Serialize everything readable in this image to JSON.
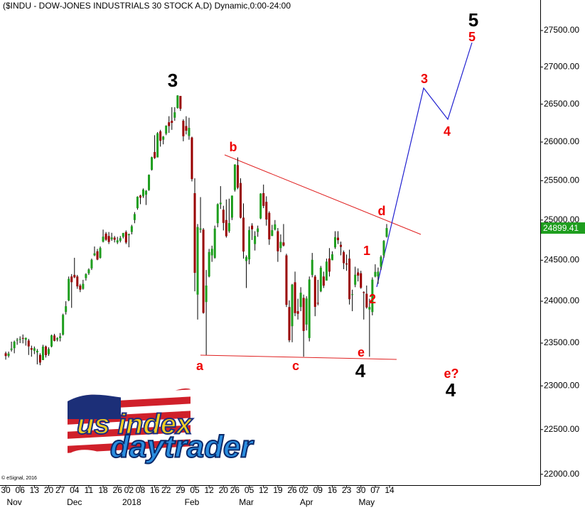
{
  "chart_data": {
    "type": "candlestick",
    "title": "($INDU - DOW-JONES INDUSTRIALS 30 STOCK A,D) Dynamic,0:00-24:00",
    "copyright": "© eSignal, 2016",
    "log_y": true,
    "up_color": "#1e9e1e",
    "down_color": "#990000",
    "wick_color": "#000000",
    "ylim": [
      21880,
      27925
    ],
    "yticks": [
      {
        "value": 22000,
        "label": "22000.00"
      },
      {
        "value": 22500,
        "label": "22500.00"
      },
      {
        "value": 23000,
        "label": "23000.00"
      },
      {
        "value": 23500,
        "label": "23500.00"
      },
      {
        "value": 24000,
        "label": "24000.00"
      },
      {
        "value": 24500,
        "label": "24500.00"
      },
      {
        "value": 25000,
        "label": "25000.00"
      },
      {
        "value": 25500,
        "label": "25500.00"
      },
      {
        "value": 26000,
        "label": "26000.00"
      },
      {
        "value": 26500,
        "label": "26500.00"
      },
      {
        "value": 27000,
        "label": "27000.00"
      },
      {
        "value": 27500,
        "label": "27500.00"
      }
    ],
    "xlim": [
      -2,
      186.6
    ],
    "xticks": [
      {
        "value": 0,
        "label": "30"
      },
      {
        "value": 5,
        "label": "06"
      },
      {
        "value": 10,
        "label": "13"
      },
      {
        "value": 15,
        "label": "20"
      },
      {
        "value": 19,
        "label": "27"
      },
      {
        "value": 24,
        "label": "04"
      },
      {
        "value": 29,
        "label": "11"
      },
      {
        "value": 34,
        "label": "18"
      },
      {
        "value": 39,
        "label": "26"
      },
      {
        "value": 43,
        "label": "02"
      },
      {
        "value": 47,
        "label": "08"
      },
      {
        "value": 52,
        "label": "16"
      },
      {
        "value": 56,
        "label": "22"
      },
      {
        "value": 61,
        "label": "29"
      },
      {
        "value": 66,
        "label": "05"
      },
      {
        "value": 71,
        "label": "12"
      },
      {
        "value": 76,
        "label": "20"
      },
      {
        "value": 80,
        "label": "26"
      },
      {
        "value": 85,
        "label": "05"
      },
      {
        "value": 90,
        "label": "12"
      },
      {
        "value": 95,
        "label": "19"
      },
      {
        "value": 100,
        "label": "26"
      },
      {
        "value": 104,
        "label": "02"
      },
      {
        "value": 109,
        "label": "09"
      },
      {
        "value": 114,
        "label": "16"
      },
      {
        "value": 119,
        "label": "23"
      },
      {
        "value": 124,
        "label": "30"
      },
      {
        "value": 129,
        "label": "07"
      },
      {
        "value": 134,
        "label": "14"
      }
    ],
    "month_labels": [
      {
        "value": 3,
        "label": "Nov"
      },
      {
        "value": 24,
        "label": "Dec"
      },
      {
        "value": 44,
        "label": "2018"
      },
      {
        "value": 65,
        "label": "Feb"
      },
      {
        "value": 84,
        "label": "Mar"
      },
      {
        "value": 105,
        "label": "Apr"
      },
      {
        "value": 126,
        "label": "May"
      }
    ],
    "open": [
      23380,
      23350,
      23420,
      23440,
      23530,
      23545,
      23560,
      23540,
      23530,
      23440,
      23410,
      23390,
      23360,
      23300,
      23460,
      23370,
      23460,
      23590,
      23540,
      23560,
      23600,
      23870,
      24010,
      24300,
      24320,
      24300,
      24190,
      24150,
      24280,
      24340,
      24400,
      24560,
      24610,
      24530,
      24730,
      24830,
      24800,
      24760,
      24780,
      24720,
      24740,
      24790,
      24850,
      24810,
      24850,
      25000,
      25150,
      25310,
      25300,
      25320,
      25380,
      25640,
      25870,
      25800,
      26140,
      26030,
      26110,
      26260,
      26280,
      26320,
      26450,
      26610,
      26280,
      26210,
      26080,
      26060,
      25340,
      24080,
      24880,
      24880,
      23990,
      24300,
      24560,
      24530,
      24960,
      25200,
      25130,
      25000,
      24860,
      25030,
      25380,
      25700,
      25470,
      25030,
      24490,
      24510,
      24930,
      24700,
      24850,
      25020,
      25340,
      25230,
      25090,
      24800,
      24880,
      24860,
      24650,
      24720,
      24560,
      23930,
      23700,
      24230,
      23880,
      23930,
      24040,
      23720,
      23560,
      24320,
      24300,
      23980,
      24120,
      24300,
      24250,
      24520,
      24500,
      24660,
      24780,
      24690,
      24600,
      24460,
      24520,
      24080,
      24200,
      24350,
      24340,
      24110,
      24090,
      23900,
      23870,
      24300,
      24300,
      24420,
      24560,
      24790
    ],
    "high": [
      23400,
      23400,
      23517,
      23530,
      23560,
      23580,
      23602,
      23565,
      23550,
      23470,
      23460,
      23430,
      23380,
      23480,
      23470,
      23450,
      23600,
      23610,
      23570,
      23620,
      23850,
      24000,
      24300,
      24330,
      24530,
      24320,
      24210,
      24260,
      24340,
      24400,
      24520,
      24670,
      24640,
      24670,
      24880,
      24850,
      24850,
      24840,
      24800,
      24790,
      24800,
      24840,
      24870,
      24830,
      24940,
      25100,
      25300,
      25320,
      25400,
      25380,
      25580,
      25810,
      26090,
      26130,
      26160,
      26080,
      26220,
      26340,
      26460,
      26460,
      26620,
      26610,
      26300,
      26340,
      26320,
      26070,
      25530,
      24950,
      25290,
      24900,
      24380,
      24640,
      24680,
      24930,
      25210,
      25430,
      25180,
      25260,
      25270,
      25310,
      25710,
      25800,
      25530,
      25210,
      24560,
      24920,
      24960,
      24860,
      24930,
      25340,
      25450,
      25300,
      25110,
      24940,
      25000,
      24900,
      24820,
      24950,
      24580,
      24010,
      24210,
      24360,
      24030,
      24170,
      24080,
      24060,
      24300,
      24590,
      24320,
      24260,
      24430,
      24360,
      24520,
      24650,
      24610,
      24860,
      24860,
      24730,
      24620,
      24570,
      24630,
      24140,
      24420,
      24400,
      24370,
      24120,
      24190,
      24030,
      24290,
      24450,
      24410,
      24560,
      24750,
      24950
    ],
    "low": [
      23305,
      23330,
      23400,
      23380,
      23480,
      23500,
      23497,
      23470,
      23360,
      23340,
      23370,
      23250,
      23240,
      23300,
      23330,
      23350,
      23450,
      23520,
      23520,
      23520,
      23590,
      23840,
      24000,
      23920,
      24280,
      24150,
      24110,
      24140,
      24250,
      24320,
      24380,
      24550,
      24500,
      24520,
      24720,
      24740,
      24700,
      24740,
      24720,
      24700,
      24720,
      24770,
      24700,
      24660,
      24820,
      24960,
      25130,
      25200,
      25280,
      25190,
      25370,
      25630,
      25780,
      25800,
      25940,
      25970,
      26090,
      26120,
      26160,
      26280,
      26440,
      26410,
      26010,
      26100,
      26030,
      25490,
      24120,
      23780,
      24840,
      23850,
      23360,
      24290,
      24480,
      24520,
      24910,
      25140,
      24870,
      24780,
      24840,
      25000,
      25360,
      25390,
      25020,
      24520,
      24160,
      24450,
      24750,
      24620,
      24790,
      25010,
      25150,
      24930,
      24690,
      24800,
      24870,
      24480,
      24600,
      24670,
      23930,
      23510,
      23510,
      23820,
      23780,
      23880,
      23340,
      23650,
      23520,
      24290,
      23820,
      23950,
      24110,
      24160,
      24250,
      24300,
      24500,
      24640,
      24700,
      24560,
      24390,
      24370,
      23960,
      23880,
      24170,
      24240,
      24150,
      23780,
      23910,
      23340,
      23830,
      24290,
      24210,
      24380,
      24530,
      24780
    ],
    "close": [
      23348,
      23377,
      23435,
      23516,
      23539,
      23548,
      23557,
      23563,
      23461,
      23422,
      23439,
      23409,
      23271,
      23458,
      23358,
      23430,
      23591,
      23526,
      23558,
      23580,
      23836,
      23940,
      24272,
      24231,
      24290,
      24180,
      24140,
      24211,
      24329,
      24386,
      24505,
      24585,
      24508,
      24651,
      24792,
      24754,
      24726,
      24782,
      24754,
      24746,
      24774,
      24837,
      24719,
      24824,
      24922,
      25075,
      25295,
      25283,
      25386,
      25369,
      25575,
      25803,
      25792,
      26115,
      26017,
      26071,
      26214,
      26210,
      26252,
      26392,
      26616,
      26439,
      26076,
      26149,
      26186,
      25520,
      24345,
      24912,
      24893,
      23860,
      24190,
      24601,
      24640,
      24893,
      25200,
      25219,
      24964,
      24798,
      24962,
      25309,
      25709,
      25410,
      25029,
      24608,
      24538,
      24874,
      24884,
      24801,
      24895,
      25335,
      25179,
      25007,
      24758,
      24873,
      24946,
      24610,
      24727,
      24682,
      23957,
      23533,
      24202,
      23857,
      23849,
      24103,
      23644,
      24033,
      24264,
      24505,
      23932,
      23979,
      24408,
      24189,
      24483,
      24360,
      24573,
      24786,
      24748,
      24665,
      24463,
      24448,
      24024,
      24084,
      24322,
      24311,
      24163,
      24100,
      23925,
      23930,
      24262,
      24357,
      24360,
      24542,
      24739,
      24899.41
    ],
    "annotations": [
      {
        "text": "3",
        "color": "#000000"
      },
      {
        "text": "b",
        "color": "#ee0000"
      },
      {
        "text": "a",
        "color": "#ee0000"
      },
      {
        "text": "c",
        "color": "#ee0000"
      },
      {
        "text": "e",
        "color": "#ee0000"
      },
      {
        "text": "4",
        "color": "#000000"
      },
      {
        "text": "d",
        "color": "#ee0000"
      },
      {
        "text": "1",
        "color": "#ee0000"
      },
      {
        "text": "2",
        "color": "#ee0000"
      },
      {
        "text": "3",
        "color": "#ee0000"
      },
      {
        "text": "4",
        "color": "#ee0000"
      },
      {
        "text": "5",
        "color": "#ee0000"
      },
      {
        "text": "5",
        "color": "#000000"
      },
      {
        "text": "e?",
        "color": "#ee0000"
      },
      {
        "text": "4",
        "color": "#000000"
      }
    ],
    "logo": {
      "line1": "us index",
      "line2": "daytrader"
    }
  }
}
